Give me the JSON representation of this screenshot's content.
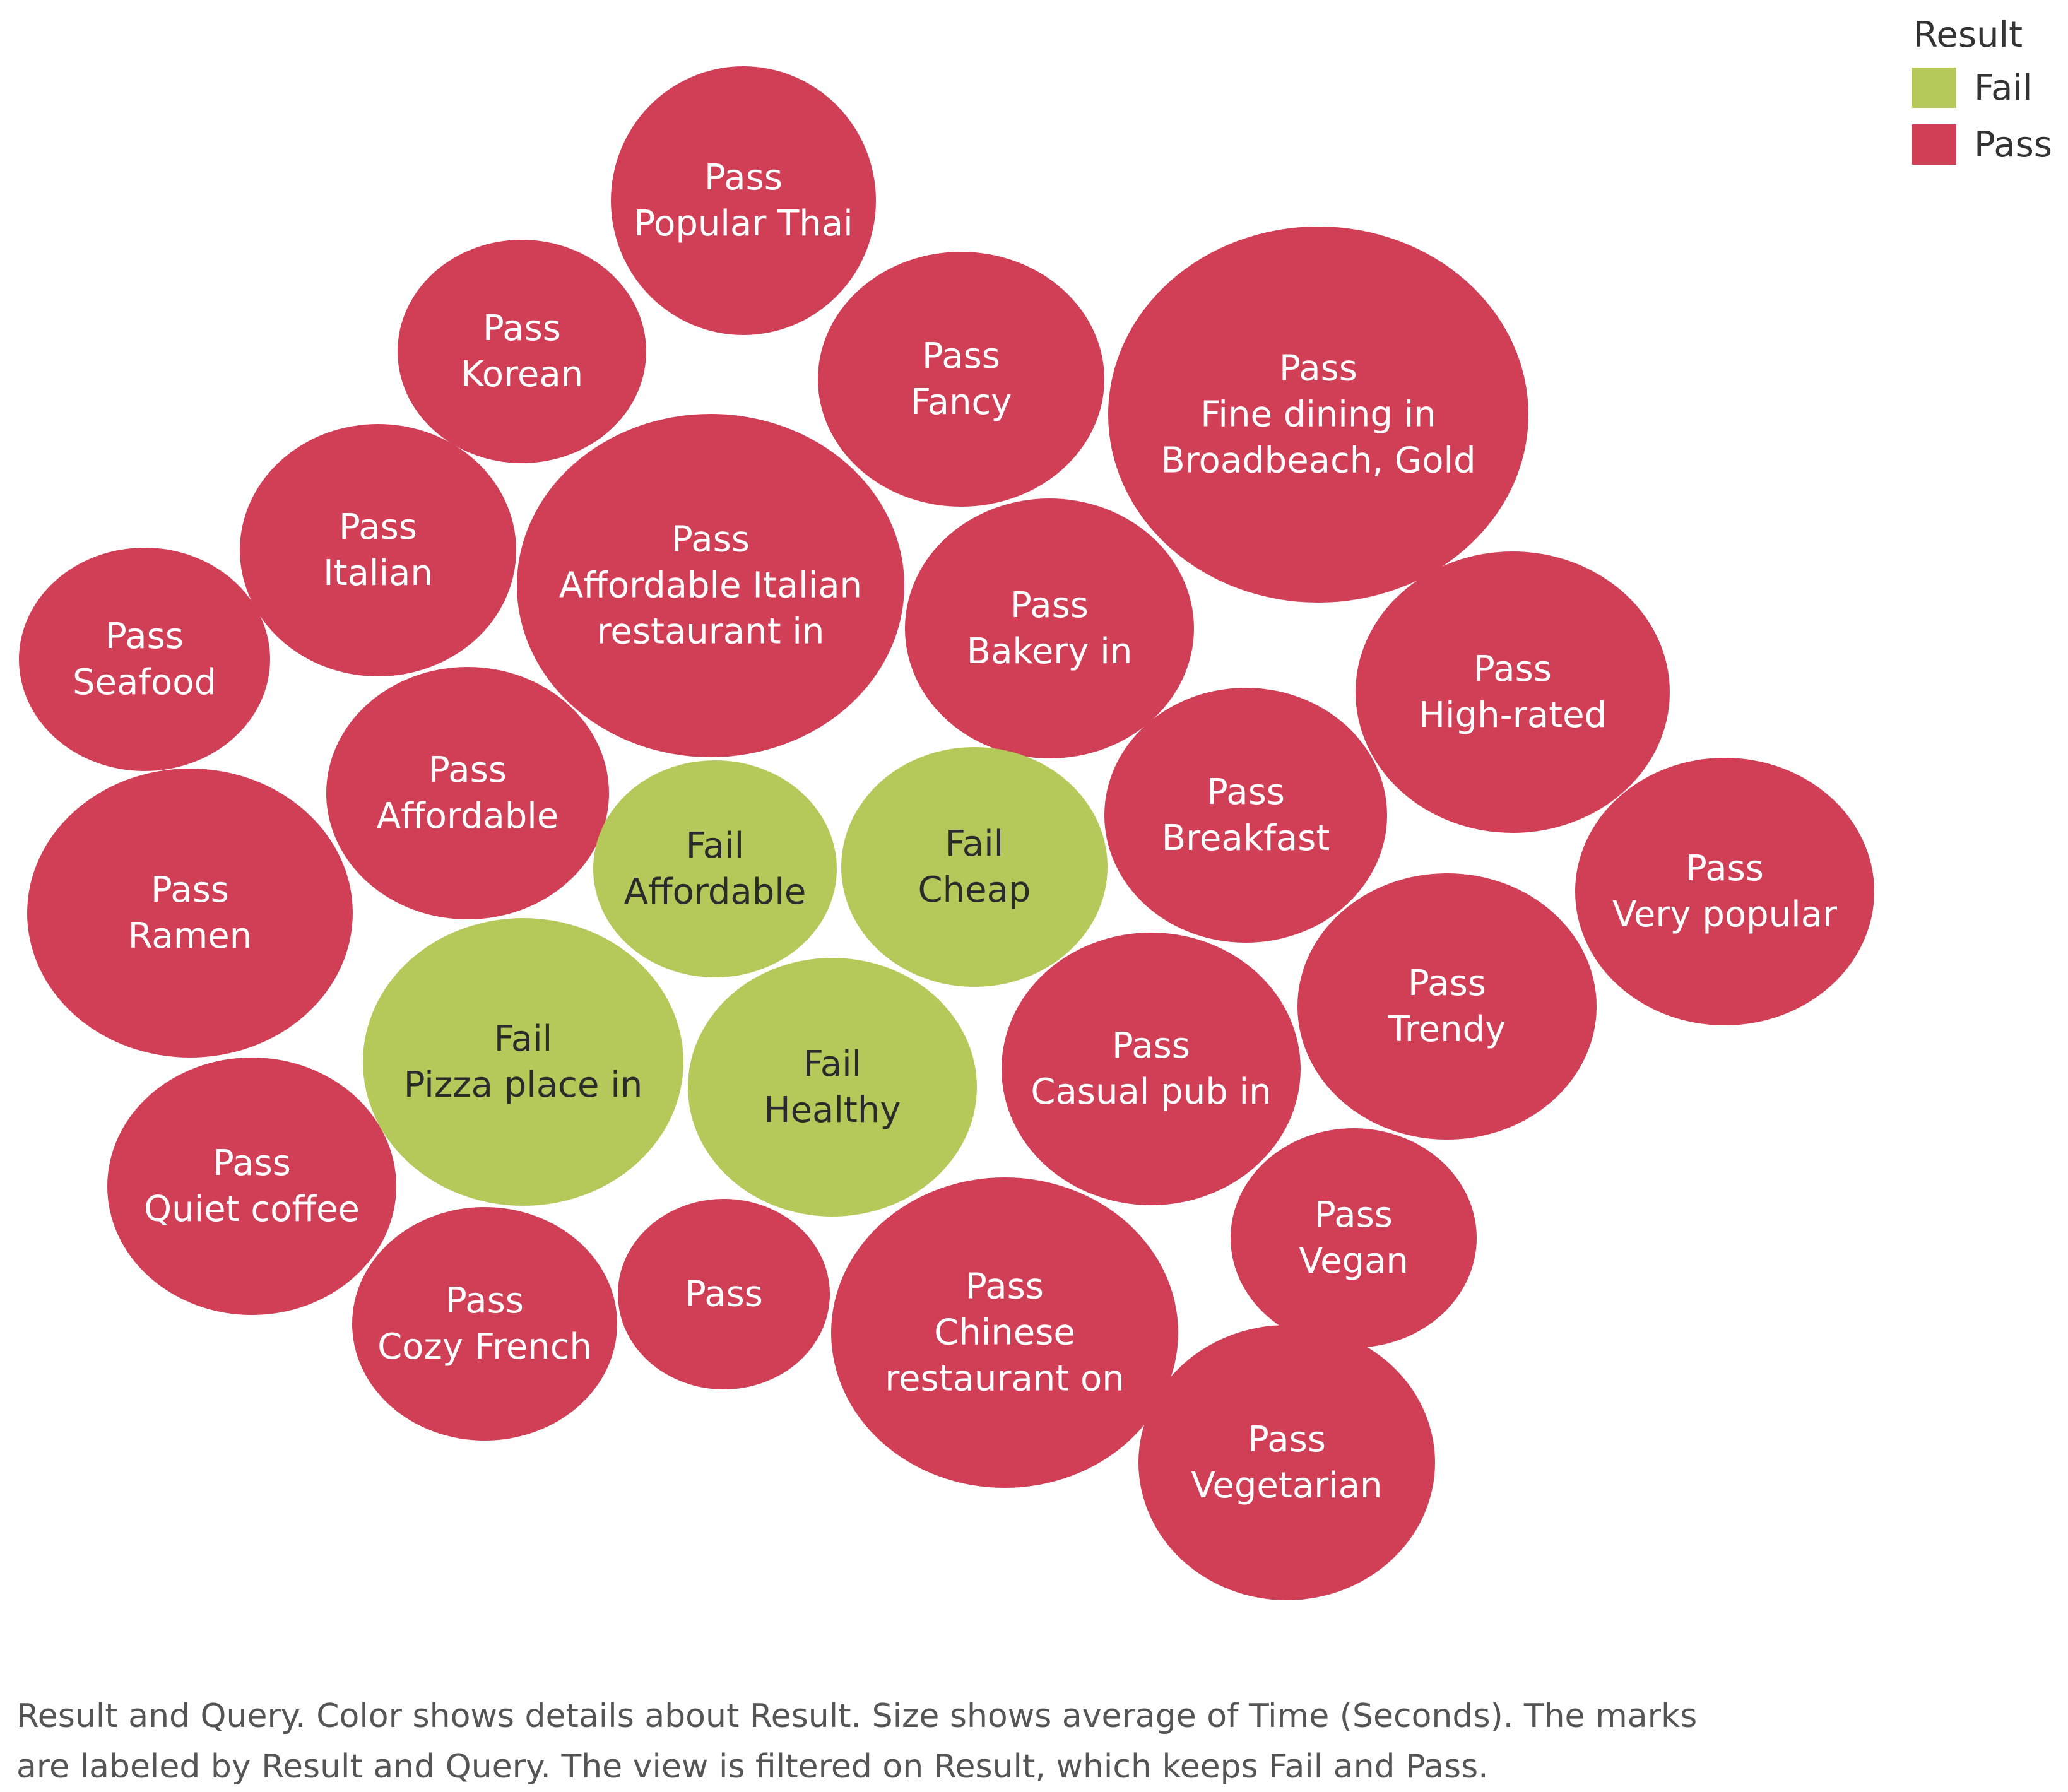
{
  "legend": {
    "title": "Result",
    "items": [
      {
        "label": "Fail",
        "color": "#b5c95a"
      },
      {
        "label": "Pass",
        "color": "#d03f56"
      }
    ]
  },
  "caption": {
    "line1": "Result and Query.  Color shows details about Result.  Size shows average of Time (Seconds).  The marks",
    "line2": "are labeled by Result and Query. The view is filtered on Result, which keeps Fail and Pass."
  },
  "chart_data": {
    "type": "bubble",
    "color_field": "Result",
    "size_field": "Time (Seconds)",
    "colors": {
      "Pass": "#d03f56",
      "Fail": "#b5c95a"
    },
    "bubbles": [
      {
        "result": "Pass",
        "query": "Popular Thai",
        "label_lines": [
          "Pass",
          "Popular Thai"
        ],
        "relative_size": 0.64
      },
      {
        "result": "Pass",
        "query": "Korean",
        "label_lines": [
          "Pass",
          "Korean"
        ],
        "relative_size": 0.55
      },
      {
        "result": "Pass",
        "query": "Fancy",
        "label_lines": [
          "Pass",
          "Fancy"
        ],
        "relative_size": 0.67
      },
      {
        "result": "Pass",
        "query": "Fine dining in Broadbeach, Gold",
        "label_lines": [
          "Pass",
          "Fine dining in",
          "Broadbeach, Gold"
        ],
        "relative_size": 1.0
      },
      {
        "result": "Pass",
        "query": "Italian",
        "label_lines": [
          "Pass",
          "Italian"
        ],
        "relative_size": 0.55
      },
      {
        "result": "Pass",
        "query": "Affordable Italian restaurant in",
        "label_lines": [
          "Pass",
          "Affordable Italian",
          "restaurant in"
        ],
        "relative_size": 0.83
      },
      {
        "result": "Pass",
        "query": "Bakery in",
        "label_lines": [
          "Pass",
          "Bakery in"
        ],
        "relative_size": 0.59
      },
      {
        "result": "Pass",
        "query": "Seafood",
        "label_lines": [
          "Pass",
          "Seafood"
        ],
        "relative_size": 0.43
      },
      {
        "result": "Pass",
        "query": "High-rated",
        "label_lines": [
          "Pass",
          "High-rated"
        ],
        "relative_size": 0.69
      },
      {
        "result": "Pass",
        "query": "Affordable",
        "label_lines": [
          "Pass",
          "Affordable"
        ],
        "relative_size": 0.46
      },
      {
        "result": "Fail",
        "query": "Affordable",
        "label_lines": [
          "Fail",
          "Affordable"
        ],
        "relative_size": 0.39
      },
      {
        "result": "Fail",
        "query": "Cheap",
        "label_lines": [
          "Fail",
          "Cheap"
        ],
        "relative_size": 0.45
      },
      {
        "result": "Pass",
        "query": "Breakfast",
        "label_lines": [
          "Pass",
          "Breakfast"
        ],
        "relative_size": 0.54
      },
      {
        "result": "Pass",
        "query": "Ramen",
        "label_lines": [
          "Pass",
          "Ramen"
        ],
        "relative_size": 0.68
      },
      {
        "result": "Pass",
        "query": "Very popular",
        "label_lines": [
          "Pass",
          "Very popular"
        ],
        "relative_size": 0.57
      },
      {
        "result": "Fail",
        "query": "Pizza place in",
        "label_lines": [
          "Fail",
          "Pizza place in"
        ],
        "relative_size": 0.64
      },
      {
        "result": "Fail",
        "query": "Healthy",
        "label_lines": [
          "Fail",
          "Healthy"
        ],
        "relative_size": 0.51
      },
      {
        "result": "Pass",
        "query": "Casual pub in",
        "label_lines": [
          "Pass",
          "Casual pub in"
        ],
        "relative_size": 0.58
      },
      {
        "result": "Pass",
        "query": "Trendy",
        "label_lines": [
          "Pass",
          "Trendy"
        ],
        "relative_size": 0.51
      },
      {
        "result": "Pass",
        "query": "Quiet coffee",
        "label_lines": [
          "Pass",
          "Quiet coffee"
        ],
        "relative_size": 0.44
      },
      {
        "result": "Pass",
        "query": "Vegan",
        "label_lines": [
          "Pass",
          "Vegan"
        ],
        "relative_size": 0.38
      },
      {
        "result": "Pass",
        "query": "Cozy French",
        "label_lines": [
          "Pass",
          "Cozy French"
        ],
        "relative_size": 0.4
      },
      {
        "result": "Pass",
        "query": "",
        "label_lines": [
          "Pass"
        ],
        "relative_size": 0.25
      },
      {
        "result": "Pass",
        "query": "Chinese restaurant on",
        "label_lines": [
          "Pass",
          "Chinese",
          "restaurant on"
        ],
        "relative_size": 0.68
      },
      {
        "result": "Pass",
        "query": "Vegetarian",
        "label_lines": [
          "Pass",
          "Vegetarian"
        ],
        "relative_size": 0.51
      }
    ]
  }
}
